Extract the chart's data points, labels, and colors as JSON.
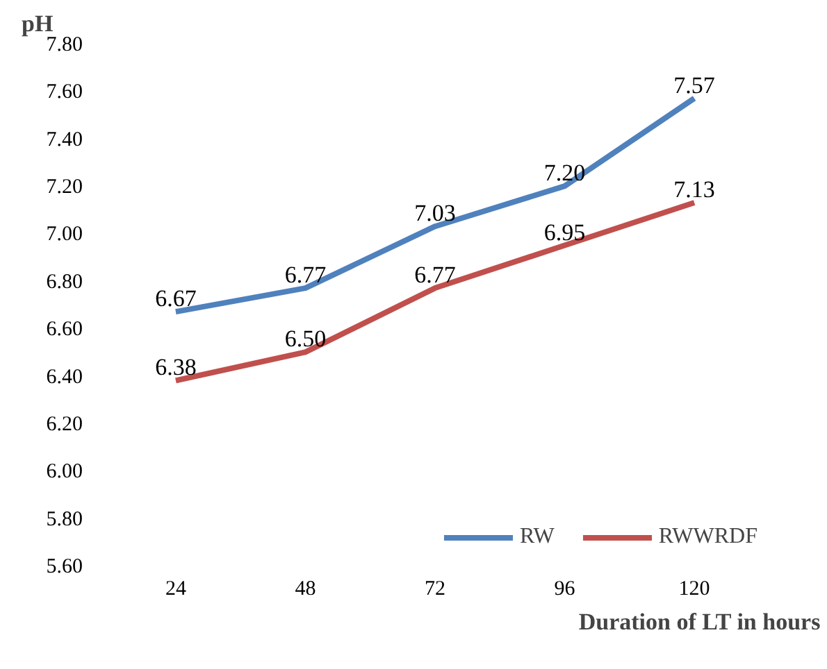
{
  "chart_data": {
    "type": "line",
    "ylabel": "pH",
    "xlabel": "Duration of LT in hours",
    "categories": [
      "24",
      "48",
      "72",
      "96",
      "120"
    ],
    "series": [
      {
        "name": "RW",
        "color": "#4f81bd",
        "values": [
          6.67,
          6.77,
          7.03,
          7.2,
          7.57
        ],
        "value_labels": [
          "6.67",
          "6.77",
          "7.03",
          "7.20",
          "7.57"
        ]
      },
      {
        "name": "RWWRDF",
        "color": "#c0504d",
        "values": [
          6.38,
          6.5,
          6.77,
          6.95,
          7.13
        ],
        "value_labels": [
          "6.38",
          "6.50",
          "6.77",
          "6.95",
          "7.13"
        ]
      }
    ],
    "ylim": [
      5.6,
      7.8
    ],
    "yticks": [
      {
        "value": 5.6,
        "label": "5.60"
      },
      {
        "value": 5.8,
        "label": "5.80"
      },
      {
        "value": 6.0,
        "label": "6.00"
      },
      {
        "value": 6.2,
        "label": "6.20"
      },
      {
        "value": 6.4,
        "label": "6.40"
      },
      {
        "value": 6.6,
        "label": "6.60"
      },
      {
        "value": 6.8,
        "label": "6.80"
      },
      {
        "value": 7.0,
        "label": "7.00"
      },
      {
        "value": 7.2,
        "label": "7.20"
      },
      {
        "value": 7.4,
        "label": "7.40"
      },
      {
        "value": 7.6,
        "label": "7.60"
      },
      {
        "value": 7.8,
        "label": "7.80"
      }
    ],
    "grid": false,
    "legend": "bottom right",
    "marker": "none",
    "line_style": "solid"
  }
}
